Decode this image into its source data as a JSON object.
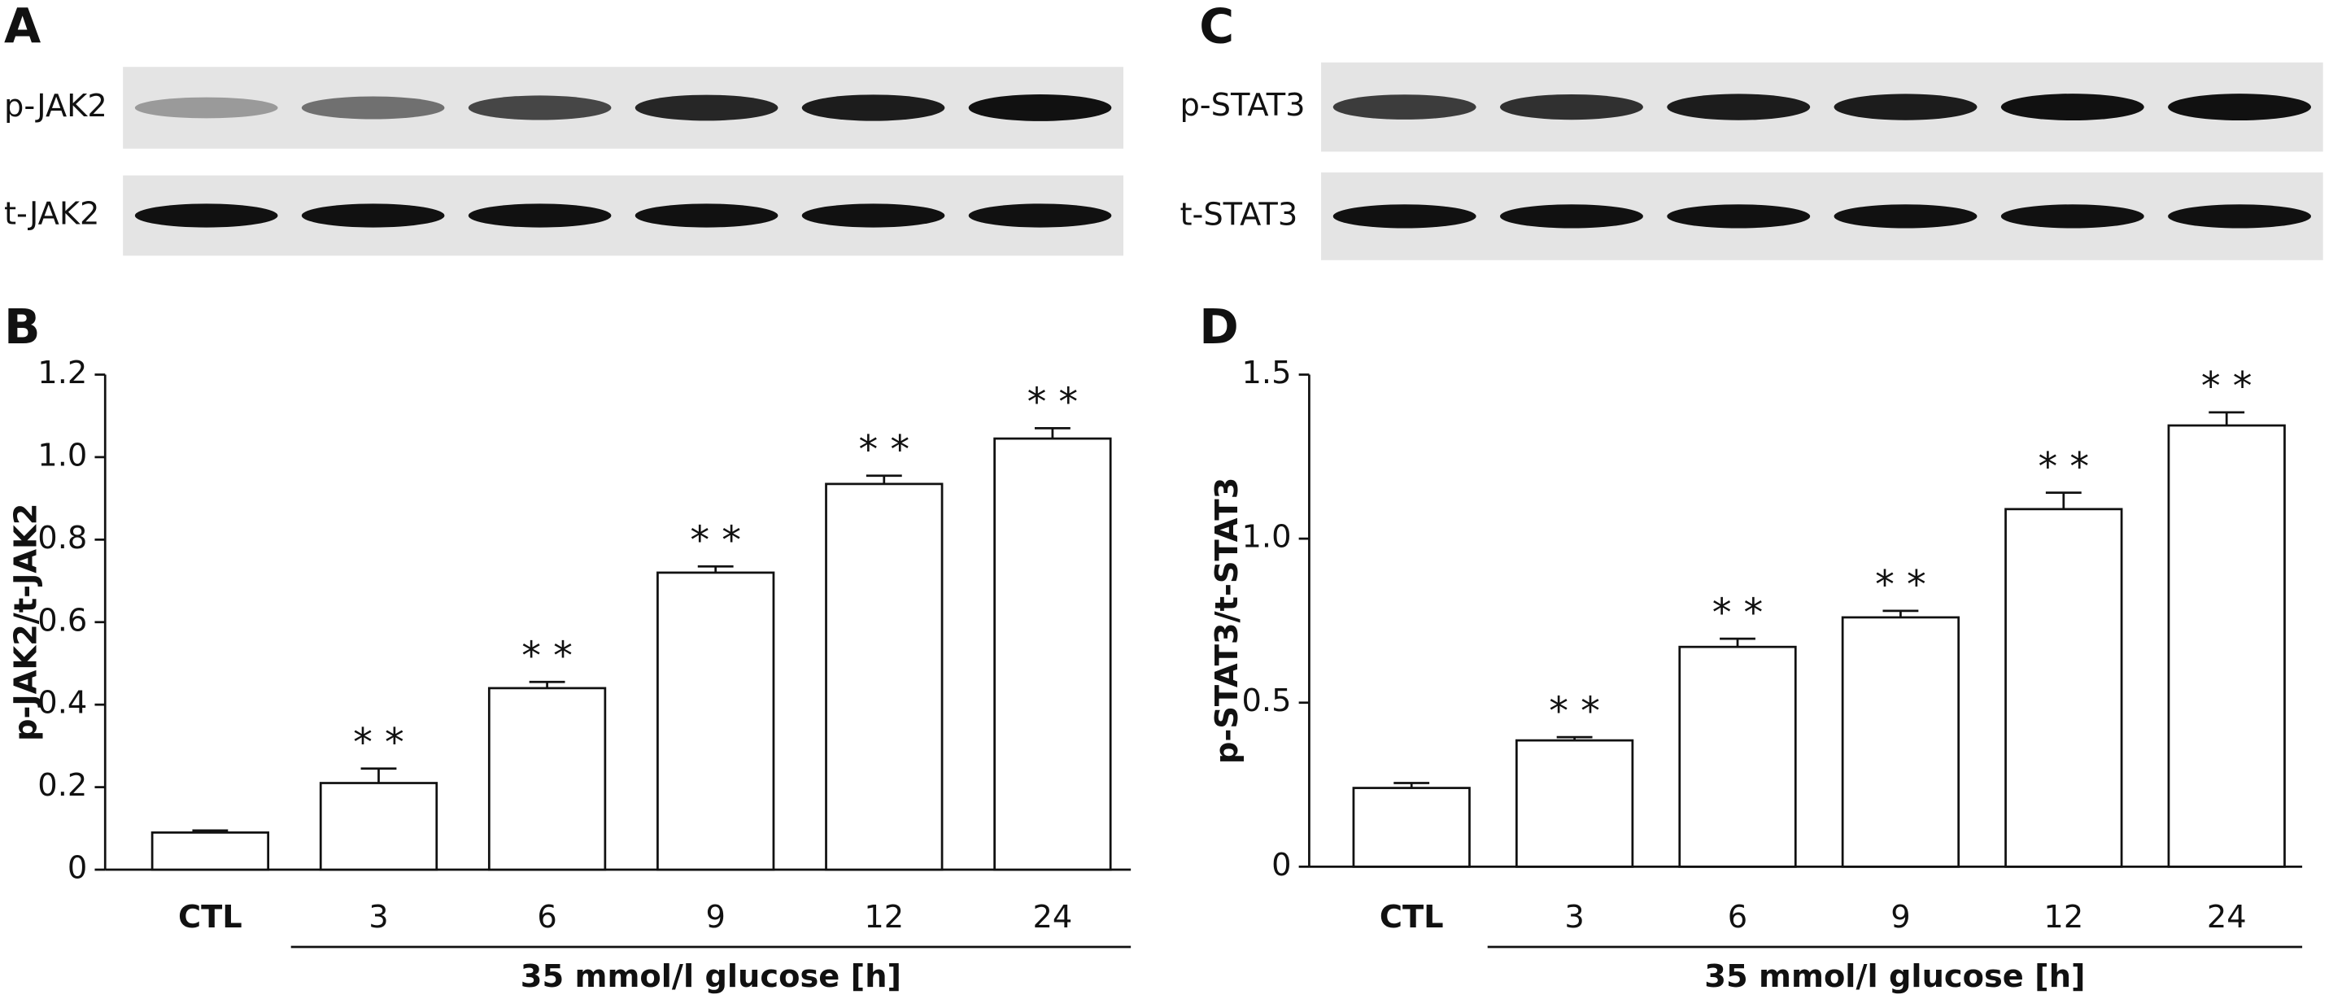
{
  "panels": {
    "A": "A",
    "B": "B",
    "C": "C",
    "D": "D"
  },
  "blots": [
    {
      "rows": [
        "p-JAK2",
        "t-JAK2"
      ]
    },
    {
      "rows": [
        "p-STAT3",
        "t-STAT3"
      ]
    }
  ],
  "chart_data": [
    {
      "type": "bar",
      "y_label": "p-JAK2/t-JAK2",
      "x_label": "35 mmol/l glucose [h]",
      "categories": [
        "CTL",
        "3",
        "6",
        "9",
        "12",
        "24"
      ],
      "values": [
        0.09,
        0.21,
        0.44,
        0.72,
        0.935,
        1.045
      ],
      "errors": [
        0.005,
        0.035,
        0.015,
        0.015,
        0.02,
        0.025
      ],
      "significance": [
        null,
        "* *",
        "* *",
        "* *",
        "* *",
        "* *"
      ],
      "color": "#ffffff",
      "ylim": [
        0,
        1.2
      ],
      "yticks": [
        0,
        0.2,
        0.4,
        0.6,
        0.8,
        {
          "value": 1,
          "label": "1.0"
        },
        1.2
      ]
    },
    {
      "type": "bar",
      "y_label": "p-STAT3/t-STAT3",
      "x_label": "35 mmol/l glucose [h]",
      "categories": [
        "CTL",
        "3",
        "6",
        "9",
        "12",
        "24"
      ],
      "values": [
        0.24,
        0.385,
        0.67,
        0.76,
        1.09,
        1.345
      ],
      "errors": [
        0.015,
        0.01,
        0.025,
        0.02,
        0.05,
        0.04
      ],
      "significance": [
        null,
        "* *",
        "* *",
        "* *",
        "* *",
        "* *"
      ],
      "color": "#ffffff",
      "ylim": [
        0,
        1.5
      ],
      "yticks": [
        0,
        0.5,
        {
          "value": 1,
          "label": "1.0"
        },
        1.5
      ]
    }
  ]
}
